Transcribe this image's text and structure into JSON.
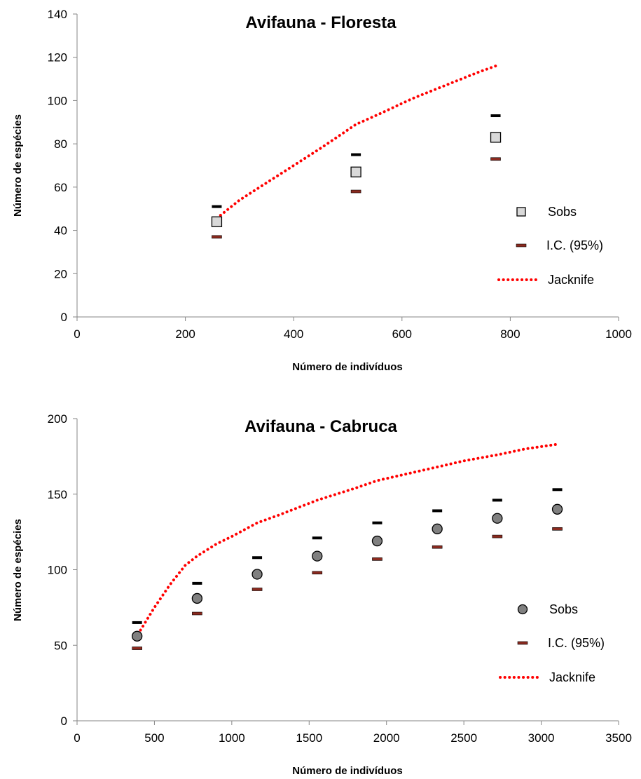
{
  "chart_data": [
    {
      "type": "scatter",
      "title": "Avifauna - Floresta",
      "xlabel": "Número de indivíduos",
      "ylabel": "Número de espécies",
      "xlim": [
        0,
        1000
      ],
      "ylim": [
        0,
        140
      ],
      "xticks": [
        "0",
        "200",
        "400",
        "600",
        "800",
        "1000"
      ],
      "yticks": [
        "0",
        "20",
        "40",
        "60",
        "80",
        "100",
        "120",
        "140"
      ],
      "marker": "square",
      "sobs_color": "#d9d9d9",
      "ci_upper_color": "#000000",
      "ci_lower_color": "#8b2a1f",
      "jacknife_color": "#ff0000",
      "legend_position": "right",
      "series": [
        {
          "name": "Sobs",
          "x": [
            258,
            515,
            773
          ],
          "y": [
            44,
            67,
            83
          ]
        },
        {
          "name": "I.C. (95%)",
          "x": [
            258,
            515,
            773
          ],
          "upper": [
            51,
            75,
            93
          ],
          "lower": [
            37,
            58,
            73
          ]
        },
        {
          "name": "Jacknife",
          "x": [
            265,
            300,
            350,
            400,
            450,
            515,
            560,
            620,
            680,
            740,
            773
          ],
          "y": [
            47,
            54,
            62,
            70,
            78,
            89,
            94,
            101,
            107,
            113,
            116
          ]
        }
      ]
    },
    {
      "type": "scatter",
      "title": "Avifauna - Cabruca",
      "xlabel": "Número de indivíduos",
      "ylabel": "Número de espécies",
      "xlim": [
        0,
        3500
      ],
      "ylim": [
        0,
        200
      ],
      "xticks": [
        "0",
        "500",
        "1000",
        "1500",
        "2000",
        "2500",
        "3000",
        "3500"
      ],
      "yticks": [
        "0",
        "50",
        "100",
        "150",
        "200"
      ],
      "marker": "circle",
      "sobs_color": "#808080",
      "ci_upper_color": "#000000",
      "ci_lower_color": "#8b2a1f",
      "jacknife_color": "#ff0000",
      "legend_position": "right",
      "series": [
        {
          "name": "Sobs",
          "x": [
            388,
            776,
            1164,
            1552,
            1940,
            2328,
            2716,
            3104
          ],
          "y": [
            56,
            81,
            97,
            109,
            119,
            127,
            134,
            140
          ]
        },
        {
          "name": "I.C. (95%)",
          "x": [
            388,
            776,
            1164,
            1552,
            1940,
            2328,
            2716,
            3104
          ],
          "upper": [
            65,
            91,
            108,
            121,
            131,
            139,
            146,
            153
          ],
          "lower": [
            48,
            71,
            87,
            98,
            107,
            115,
            122,
            127
          ]
        },
        {
          "name": "Jacknife",
          "x": [
            410,
            500,
            600,
            700,
            776,
            900,
            1000,
            1164,
            1300,
            1552,
            1800,
            1940,
            2200,
            2328,
            2500,
            2716,
            2900,
            3104
          ],
          "y": [
            60,
            75,
            90,
            103,
            109,
            117,
            122,
            131,
            136,
            146,
            154,
            159,
            165,
            168,
            172,
            176,
            180,
            183
          ]
        }
      ]
    }
  ]
}
